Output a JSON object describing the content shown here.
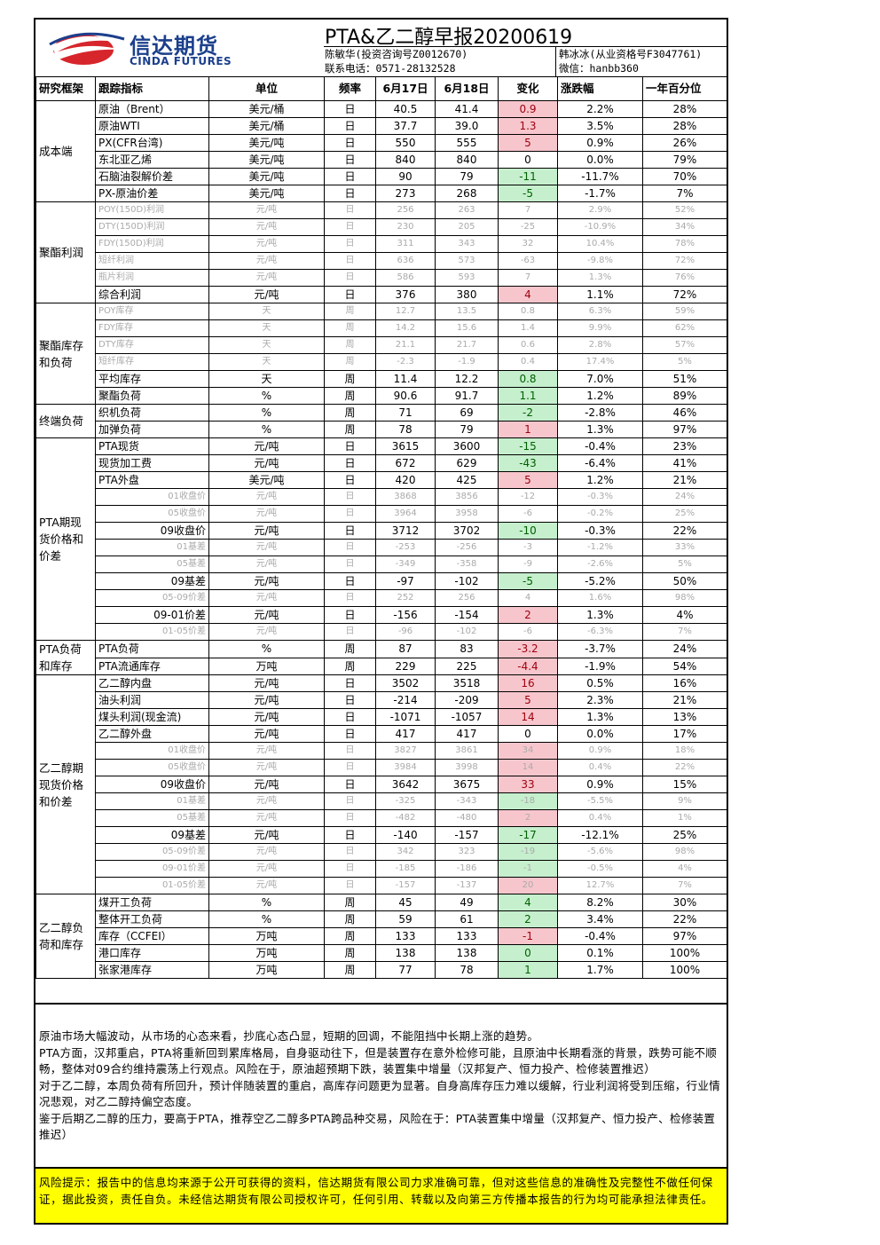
{
  "header": {
    "logo_cn": "信达期货",
    "logo_en": "CINDA FUTURES",
    "title": "PTA&乙二醇早报20200619",
    "analyst1": "陈敏华(投资咨询号Z0012670)",
    "phone": "联系电话：0571-28132528",
    "analyst2": "韩冰冰(从业资格号F3047761)",
    "wechat": "微信：hanbb360"
  },
  "colors": {
    "up_bg": "#f7c6cc",
    "down_bg": "#c6efcd",
    "risk_bg": "#ffff00",
    "logo_blue": "#1b3f8c",
    "logo_red": "#d7252c"
  },
  "columns": [
    "研究框架",
    "跟踪指标",
    "单位",
    "频率",
    "6月17日",
    "6月18日",
    "变化",
    "涨跌幅",
    "一年百分位"
  ],
  "sections": [
    {
      "name": "成本端",
      "rows": [
        {
          "ind": "原油（Brent）",
          "unit": "美元/桶",
          "freq": "日",
          "d1": "40.5",
          "d2": "41.4",
          "chg": "0.9",
          "pct": "2.2%",
          "pctl": "28%",
          "dir": "up"
        },
        {
          "ind": "原油WTI",
          "unit": "美元/桶",
          "freq": "日",
          "d1": "37.7",
          "d2": "39.0",
          "chg": "1.3",
          "pct": "3.5%",
          "pctl": "28%",
          "dir": "up"
        },
        {
          "ind": "PX(CFR台湾)",
          "unit": "美元/吨",
          "freq": "日",
          "d1": "550",
          "d2": "555",
          "chg": "5",
          "pct": "0.9%",
          "pctl": "26%",
          "dir": "up"
        },
        {
          "ind": "东北亚乙烯",
          "unit": "美元/吨",
          "freq": "日",
          "d1": "840",
          "d2": "840",
          "chg": "0",
          "pct": "0.0%",
          "pctl": "79%",
          "dir": ""
        },
        {
          "ind": "石脑油裂解价差",
          "unit": "美元/吨",
          "freq": "日",
          "d1": "90",
          "d2": "79",
          "chg": "-11",
          "pct": "-11.7%",
          "pctl": "70%",
          "dir": "dn"
        },
        {
          "ind": "PX-原油价差",
          "unit": "美元/吨",
          "freq": "日",
          "d1": "273",
          "d2": "268",
          "chg": "-5",
          "pct": "-1.7%",
          "pctl": "7%",
          "dir": "dn"
        }
      ]
    },
    {
      "name": "聚酯利润",
      "rows": [
        {
          "ind": "POY(150D)利润",
          "unit": "元/吨",
          "freq": "日",
          "d1": "256",
          "d2": "263",
          "chg": "7",
          "pct": "2.9%",
          "pctl": "52%",
          "dir": "",
          "dim": true
        },
        {
          "ind": "DTY(150D)利润",
          "unit": "元/吨",
          "freq": "日",
          "d1": "230",
          "d2": "205",
          "chg": "-25",
          "pct": "-10.9%",
          "pctl": "34%",
          "dir": "",
          "dim": true
        },
        {
          "ind": "FDY(150D)利润",
          "unit": "元/吨",
          "freq": "日",
          "d1": "311",
          "d2": "343",
          "chg": "32",
          "pct": "10.4%",
          "pctl": "78%",
          "dir": "",
          "dim": true
        },
        {
          "ind": "短纤利润",
          "unit": "元/吨",
          "freq": "日",
          "d1": "636",
          "d2": "573",
          "chg": "-63",
          "pct": "-9.8%",
          "pctl": "72%",
          "dir": "",
          "dim": true
        },
        {
          "ind": "瓶片利润",
          "unit": "元/吨",
          "freq": "日",
          "d1": "586",
          "d2": "593",
          "chg": "7",
          "pct": "1.3%",
          "pctl": "76%",
          "dir": "",
          "dim": true
        },
        {
          "ind": "综合利润",
          "unit": "元/吨",
          "freq": "日",
          "d1": "376",
          "d2": "380",
          "chg": "4",
          "pct": "1.1%",
          "pctl": "72%",
          "dir": "up"
        }
      ]
    },
    {
      "name": "聚酯库存和负荷",
      "rows": [
        {
          "ind": "POY库存",
          "unit": "天",
          "freq": "周",
          "d1": "12.7",
          "d2": "13.5",
          "chg": "0.8",
          "pct": "6.3%",
          "pctl": "59%",
          "dir": "",
          "dim": true
        },
        {
          "ind": "FDY库存",
          "unit": "天",
          "freq": "周",
          "d1": "14.2",
          "d2": "15.6",
          "chg": "1.4",
          "pct": "9.9%",
          "pctl": "62%",
          "dir": "",
          "dim": true
        },
        {
          "ind": "DTY库存",
          "unit": "天",
          "freq": "周",
          "d1": "21.1",
          "d2": "21.7",
          "chg": "0.6",
          "pct": "2.8%",
          "pctl": "57%",
          "dir": "",
          "dim": true
        },
        {
          "ind": "短纤库存",
          "unit": "天",
          "freq": "周",
          "d1": "-2.3",
          "d2": "-1.9",
          "chg": "0.4",
          "pct": "17.4%",
          "pctl": "5%",
          "dir": "",
          "dim": true
        },
        {
          "ind": "平均库存",
          "unit": "天",
          "freq": "周",
          "d1": "11.4",
          "d2": "12.2",
          "chg": "0.8",
          "pct": "7.0%",
          "pctl": "51%",
          "dir": "dn"
        },
        {
          "ind": "聚酯负荷",
          "unit": "%",
          "freq": "周",
          "d1": "90.6",
          "d2": "91.7",
          "chg": "1.1",
          "pct": "1.2%",
          "pctl": "89%",
          "dir": "dn"
        }
      ]
    },
    {
      "name": "终端负荷",
      "rows": [
        {
          "ind": "织机负荷",
          "unit": "%",
          "freq": "周",
          "d1": "71",
          "d2": "69",
          "chg": "-2",
          "pct": "-2.8%",
          "pctl": "46%",
          "dir": "dn"
        },
        {
          "ind": "加弹负荷",
          "unit": "%",
          "freq": "周",
          "d1": "78",
          "d2": "79",
          "chg": "1",
          "pct": "1.3%",
          "pctl": "97%",
          "dir": "up"
        }
      ]
    },
    {
      "name": "PTA期现货价格和价差",
      "rows": [
        {
          "ind": "PTA现货",
          "unit": "元/吨",
          "freq": "日",
          "d1": "3615",
          "d2": "3600",
          "chg": "-15",
          "pct": "-0.4%",
          "pctl": "23%",
          "dir": "dn"
        },
        {
          "ind": "现货加工费",
          "unit": "元/吨",
          "freq": "日",
          "d1": "672",
          "d2": "629",
          "chg": "-43",
          "pct": "-6.4%",
          "pctl": "41%",
          "dir": "dn"
        },
        {
          "ind": "PTA外盘",
          "unit": "美元/吨",
          "freq": "日",
          "d1": "420",
          "d2": "425",
          "chg": "5",
          "pct": "1.2%",
          "pctl": "21%",
          "dir": "up"
        },
        {
          "ind": "01收盘价",
          "unit": "元/吨",
          "freq": "日",
          "d1": "3868",
          "d2": "3856",
          "chg": "-12",
          "pct": "-0.3%",
          "pctl": "24%",
          "dir": "",
          "dim": true,
          "right": true
        },
        {
          "ind": "05收盘价",
          "unit": "元/吨",
          "freq": "日",
          "d1": "3964",
          "d2": "3958",
          "chg": "-6",
          "pct": "-0.2%",
          "pctl": "25%",
          "dir": "",
          "dim": true,
          "right": true
        },
        {
          "ind": "09收盘价",
          "unit": "元/吨",
          "freq": "日",
          "d1": "3712",
          "d2": "3702",
          "chg": "-10",
          "pct": "-0.3%",
          "pctl": "22%",
          "dir": "dn",
          "right": true
        },
        {
          "ind": "01基差",
          "unit": "元/吨",
          "freq": "日",
          "d1": "-253",
          "d2": "-256",
          "chg": "-3",
          "pct": "-1.2%",
          "pctl": "33%",
          "dir": "",
          "dim": true,
          "right": true
        },
        {
          "ind": "05基差",
          "unit": "元/吨",
          "freq": "日",
          "d1": "-349",
          "d2": "-358",
          "chg": "-9",
          "pct": "-2.6%",
          "pctl": "5%",
          "dir": "",
          "dim": true,
          "right": true
        },
        {
          "ind": "09基差",
          "unit": "元/吨",
          "freq": "日",
          "d1": "-97",
          "d2": "-102",
          "chg": "-5",
          "pct": "-5.2%",
          "pctl": "50%",
          "dir": "dn",
          "right": true
        },
        {
          "ind": "05-09价差",
          "unit": "元/吨",
          "freq": "日",
          "d1": "252",
          "d2": "256",
          "chg": "4",
          "pct": "1.6%",
          "pctl": "98%",
          "dir": "",
          "dim": true,
          "right": true
        },
        {
          "ind": "09-01价差",
          "unit": "元/吨",
          "freq": "日",
          "d1": "-156",
          "d2": "-154",
          "chg": "2",
          "pct": "1.3%",
          "pctl": "4%",
          "dir": "up",
          "right": true
        },
        {
          "ind": "01-05价差",
          "unit": "元/吨",
          "freq": "日",
          "d1": "-96",
          "d2": "-102",
          "chg": "-6",
          "pct": "-6.3%",
          "pctl": "7%",
          "dir": "",
          "dim": true,
          "right": true
        }
      ]
    },
    {
      "name": "PTA负荷和库存",
      "rows": [
        {
          "ind": "PTA负荷",
          "unit": "%",
          "freq": "周",
          "d1": "87",
          "d2": "83",
          "chg": "-3.2",
          "pct": "-3.7%",
          "pctl": "24%",
          "dir": "up"
        },
        {
          "ind": "PTA流通库存",
          "unit": "万吨",
          "freq": "周",
          "d1": "229",
          "d2": "225",
          "chg": "-4.4",
          "pct": "-1.9%",
          "pctl": "54%",
          "dir": "up"
        }
      ]
    },
    {
      "name": "乙二醇期现货价格和价差",
      "rows": [
        {
          "ind": "乙二醇内盘",
          "unit": "元/吨",
          "freq": "日",
          "d1": "3502",
          "d2": "3518",
          "chg": "16",
          "pct": "0.5%",
          "pctl": "16%",
          "dir": "up"
        },
        {
          "ind": "油头利润",
          "unit": "元/吨",
          "freq": "日",
          "d1": "-214",
          "d2": "-209",
          "chg": "5",
          "pct": "2.3%",
          "pctl": "21%",
          "dir": "up"
        },
        {
          "ind": "煤头利润(现金流)",
          "unit": "元/吨",
          "freq": "日",
          "d1": "-1071",
          "d2": "-1057",
          "chg": "14",
          "pct": "1.3%",
          "pctl": "13%",
          "dir": "up"
        },
        {
          "ind": "乙二醇外盘",
          "unit": "元/吨",
          "freq": "日",
          "d1": "417",
          "d2": "417",
          "chg": "0",
          "pct": "0.0%",
          "pctl": "17%",
          "dir": ""
        },
        {
          "ind": "01收盘价",
          "unit": "元/吨",
          "freq": "日",
          "d1": "3827",
          "d2": "3861",
          "chg": "34",
          "pct": "0.9%",
          "pctl": "18%",
          "dir": "up",
          "dim": true,
          "right": true
        },
        {
          "ind": "05收盘价",
          "unit": "元/吨",
          "freq": "日",
          "d1": "3984",
          "d2": "3998",
          "chg": "14",
          "pct": "0.4%",
          "pctl": "22%",
          "dir": "up",
          "dim": true,
          "right": true
        },
        {
          "ind": "09收盘价",
          "unit": "元/吨",
          "freq": "日",
          "d1": "3642",
          "d2": "3675",
          "chg": "33",
          "pct": "0.9%",
          "pctl": "15%",
          "dir": "up",
          "right": true
        },
        {
          "ind": "01基差",
          "unit": "元/吨",
          "freq": "日",
          "d1": "-325",
          "d2": "-343",
          "chg": "-18",
          "pct": "-5.5%",
          "pctl": "9%",
          "dir": "dn",
          "dim": true,
          "right": true
        },
        {
          "ind": "05基差",
          "unit": "元/吨",
          "freq": "日",
          "d1": "-482",
          "d2": "-480",
          "chg": "2",
          "pct": "0.4%",
          "pctl": "1%",
          "dir": "up",
          "dim": true,
          "right": true
        },
        {
          "ind": "09基差",
          "unit": "元/吨",
          "freq": "日",
          "d1": "-140",
          "d2": "-157",
          "chg": "-17",
          "pct": "-12.1%",
          "pctl": "25%",
          "dir": "dn",
          "right": true
        },
        {
          "ind": "05-09价差",
          "unit": "元/吨",
          "freq": "日",
          "d1": "342",
          "d2": "323",
          "chg": "-19",
          "pct": "-5.6%",
          "pctl": "98%",
          "dir": "dn",
          "dim": true,
          "right": true
        },
        {
          "ind": "09-01价差",
          "unit": "元/吨",
          "freq": "日",
          "d1": "-185",
          "d2": "-186",
          "chg": "-1",
          "pct": "-0.5%",
          "pctl": "4%",
          "dir": "dn",
          "dim": true,
          "right": true
        },
        {
          "ind": "01-05价差",
          "unit": "元/吨",
          "freq": "日",
          "d1": "-157",
          "d2": "-137",
          "chg": "20",
          "pct": "12.7%",
          "pctl": "7%",
          "dir": "up",
          "dim": true,
          "right": true
        }
      ]
    },
    {
      "name": "乙二醇负荷和库存",
      "rows": [
        {
          "ind": "煤开工负荷",
          "unit": "%",
          "freq": "周",
          "d1": "45",
          "d2": "49",
          "chg": "4",
          "pct": "8.2%",
          "pctl": "30%",
          "dir": "dn"
        },
        {
          "ind": "整体开工负荷",
          "unit": "%",
          "freq": "周",
          "d1": "59",
          "d2": "61",
          "chg": "2",
          "pct": "3.4%",
          "pctl": "22%",
          "dir": "dn"
        },
        {
          "ind": "库存（CCFEI）",
          "unit": "万吨",
          "freq": "周",
          "d1": "133",
          "d2": "133",
          "chg": "-1",
          "pct": "-0.4%",
          "pctl": "97%",
          "dir": "up"
        },
        {
          "ind": "港口库存",
          "unit": "万吨",
          "freq": "周",
          "d1": "138",
          "d2": "138",
          "chg": "0",
          "pct": "0.1%",
          "pctl": "100%",
          "dir": "dn"
        },
        {
          "ind": "张家港库存",
          "unit": "万吨",
          "freq": "周",
          "d1": "77",
          "d2": "78",
          "chg": "1",
          "pct": "1.7%",
          "pctl": "100%",
          "dir": "dn"
        }
      ]
    }
  ],
  "commentary": [
    "原油市场大幅波动，从市场的心态来看，抄底心态凸显，短期的回调，不能阻挡中长期上涨的趋势。",
    "PTA方面，汉邦重启，PTA将重新回到累库格局，自身驱动往下，但是装置存在意外检修可能，且原油中长期看涨的背景，跌势可能不顺畅，整体对09合约维持震荡上行观点。风险在于，原油超预期下跌，装置集中增量（汉邦复产、恒力投产、检修装置推迟）",
    "对于乙二醇，本周负荷有所回升，预计伴随装置的重启，高库存问题更为显著。自身高库存压力难以缓解，行业利润将受到压缩，行业情况悲观，对乙二醇持偏空态度。",
    "鉴于后期乙二醇的压力，要高于PTA，推荐空乙二醇多PTA跨品种交易，风险在于：PTA装置集中增量（汉邦复产、恒力投产、检修装置推迟）"
  ],
  "risk": "风险提示：报告中的信息均来源于公开可获得的资料，信达期货有限公司力求准确可靠，但对这些信息的准确性及完整性不做任何保证，据此投资，责任自负。未经信达期货有限公司授权许可，任何引用、转载以及向第三方传播本报告的行为均可能承担法律责任。"
}
